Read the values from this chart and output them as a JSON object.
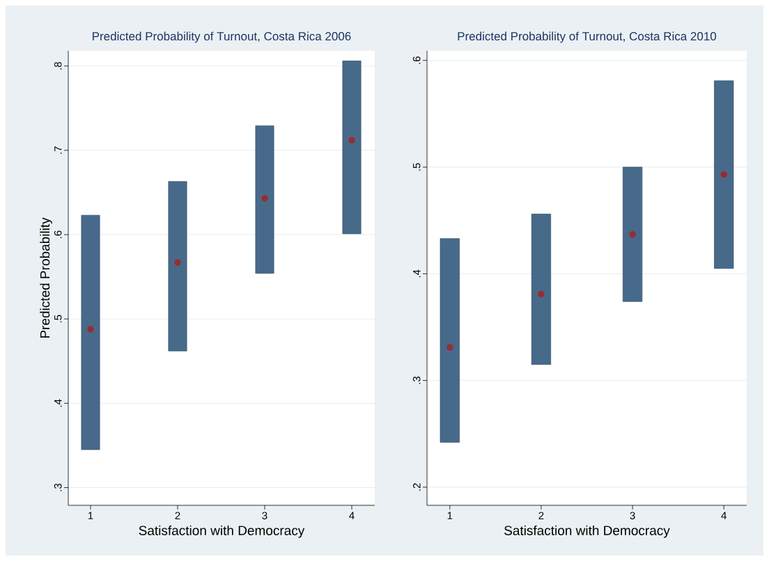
{
  "chart_data": [
    {
      "type": "bar",
      "title": "Predicted Probability of Turnout, Costa Rica 2006",
      "xlabel": "Satisfaction with Democracy",
      "ylabel": "Predicted Probability",
      "categories": [
        "1",
        "2",
        "3",
        "4"
      ],
      "series": [
        {
          "color": "#476a8a",
          "base": [
            0.345,
            0.462,
            0.554,
            0.601
          ],
          "values": [
            0.278,
            0.201,
            0.175,
            0.205
          ]
        },
        {
          "type": "scatter",
          "color": "#9a2b33",
          "marker": "circle",
          "values": [
            0.488,
            0.567,
            0.643,
            0.712
          ]
        }
      ],
      "ylim": [
        0.279,
        0.818
      ],
      "yticks": [
        {
          "value": 0.3,
          "label": ".3"
        },
        {
          "value": 0.4,
          "label": ".4"
        },
        {
          "value": 0.5,
          "label": ".5"
        },
        {
          "value": 0.6,
          "label": ".6"
        },
        {
          "value": 0.7,
          "label": ".7"
        },
        {
          "value": 0.8,
          "label": ".8"
        }
      ],
      "grid": "y"
    },
    {
      "type": "bar",
      "title": "Predicted Probability of Turnout, Costa Rica 2010",
      "xlabel": "Satisfaction with Democracy",
      "categories": [
        "1",
        "2",
        "3",
        "4"
      ],
      "series": [
        {
          "color": "#476a8a",
          "base": [
            0.242,
            0.315,
            0.374,
            0.405
          ],
          "values": [
            0.191,
            0.141,
            0.126,
            0.176
          ]
        },
        {
          "type": "scatter",
          "color": "#9a2b33",
          "marker": "circle",
          "values": [
            0.331,
            0.381,
            0.437,
            0.493
          ]
        }
      ],
      "ylim": [
        0.183,
        0.609
      ],
      "yticks": [
        {
          "value": 0.2,
          "label": ".2"
        },
        {
          "value": 0.3,
          "label": ".3"
        },
        {
          "value": 0.4,
          "label": ".4"
        },
        {
          "value": 0.5,
          "label": ".5"
        },
        {
          "value": 0.6,
          "label": ".6"
        }
      ],
      "grid": "y"
    }
  ]
}
